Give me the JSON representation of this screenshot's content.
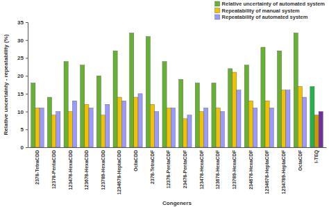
{
  "chart_data": {
    "type": "bar",
    "x_label": "Congeners",
    "y_label": "Relative uncertainty - repeatability (%)",
    "categories": [
      "2378-TetraCDD",
      "12378-PentaCDD",
      "123478-HexaCDD",
      "123678-HexaCDD",
      "123789-HexaCDD",
      "1234678-HeptaCDD",
      "OctaCDD",
      "2378-TetraCDF",
      "12378-PentaCDF",
      "23478-PentaCDF",
      "123478-HexaCDF",
      "123678-HexaCDF",
      "123789-HexaCDF",
      "234678-HexaCDF",
      "1234678-HeptaCDF",
      "1234789-HeptaCDF",
      "OctaCDF",
      "I-TEQ"
    ],
    "series": [
      {
        "name": "Relative uncertainty of automated system",
        "color": "#66b032",
        "colors": [
          "#66b032",
          "#66b032",
          "#66b032",
          "#66b032",
          "#66b032",
          "#66b032",
          "#66b032",
          "#66b032",
          "#66b032",
          "#66b032",
          "#66b032",
          "#66b032",
          "#66b032",
          "#66b032",
          "#66b032",
          "#66b032",
          "#66b032",
          "#22b14c"
        ],
        "values": [
          18,
          14,
          24,
          23,
          20,
          27,
          32,
          31,
          24,
          19,
          18,
          18,
          22,
          23,
          28,
          27,
          32,
          17
        ]
      },
      {
        "name": "Repeatability of manual system",
        "color": "#f2c200",
        "colors": [
          "#f2c200",
          "#f2c200",
          "#f2c200",
          "#f2c200",
          "#f2c200",
          "#f2c200",
          "#f2c200",
          "#f2c200",
          "#f2c200",
          "#f2c200",
          "#f2c200",
          "#f2c200",
          "#f2c200",
          "#f2c200",
          "#f2c200",
          "#f2c200",
          "#f2c200",
          "#c99a06"
        ],
        "values": [
          11,
          9,
          10,
          12,
          9,
          14,
          14,
          12,
          11,
          8,
          10,
          11,
          21,
          13,
          13,
          16,
          17,
          9
        ]
      },
      {
        "name": "Repeatability of automated system",
        "color": "#9999ff",
        "colors": [
          "#9999ff",
          "#9999ff",
          "#9999ff",
          "#9999ff",
          "#9999ff",
          "#9999ff",
          "#9999ff",
          "#9999ff",
          "#9999ff",
          "#9999ff",
          "#9999ff",
          "#9999ff",
          "#9999ff",
          "#9999ff",
          "#9999ff",
          "#9999ff",
          "#9999ff",
          "#7030a0"
        ],
        "values": [
          11,
          10,
          13,
          11,
          12,
          13,
          15,
          10,
          11,
          9,
          11,
          10,
          16,
          11,
          11,
          16,
          14,
          10
        ]
      }
    ],
    "ylim": [
      0,
      35
    ],
    "yticks": [
      0,
      5,
      10,
      15,
      20,
      25,
      30,
      35
    ],
    "grid": false,
    "legend": "top-right"
  }
}
